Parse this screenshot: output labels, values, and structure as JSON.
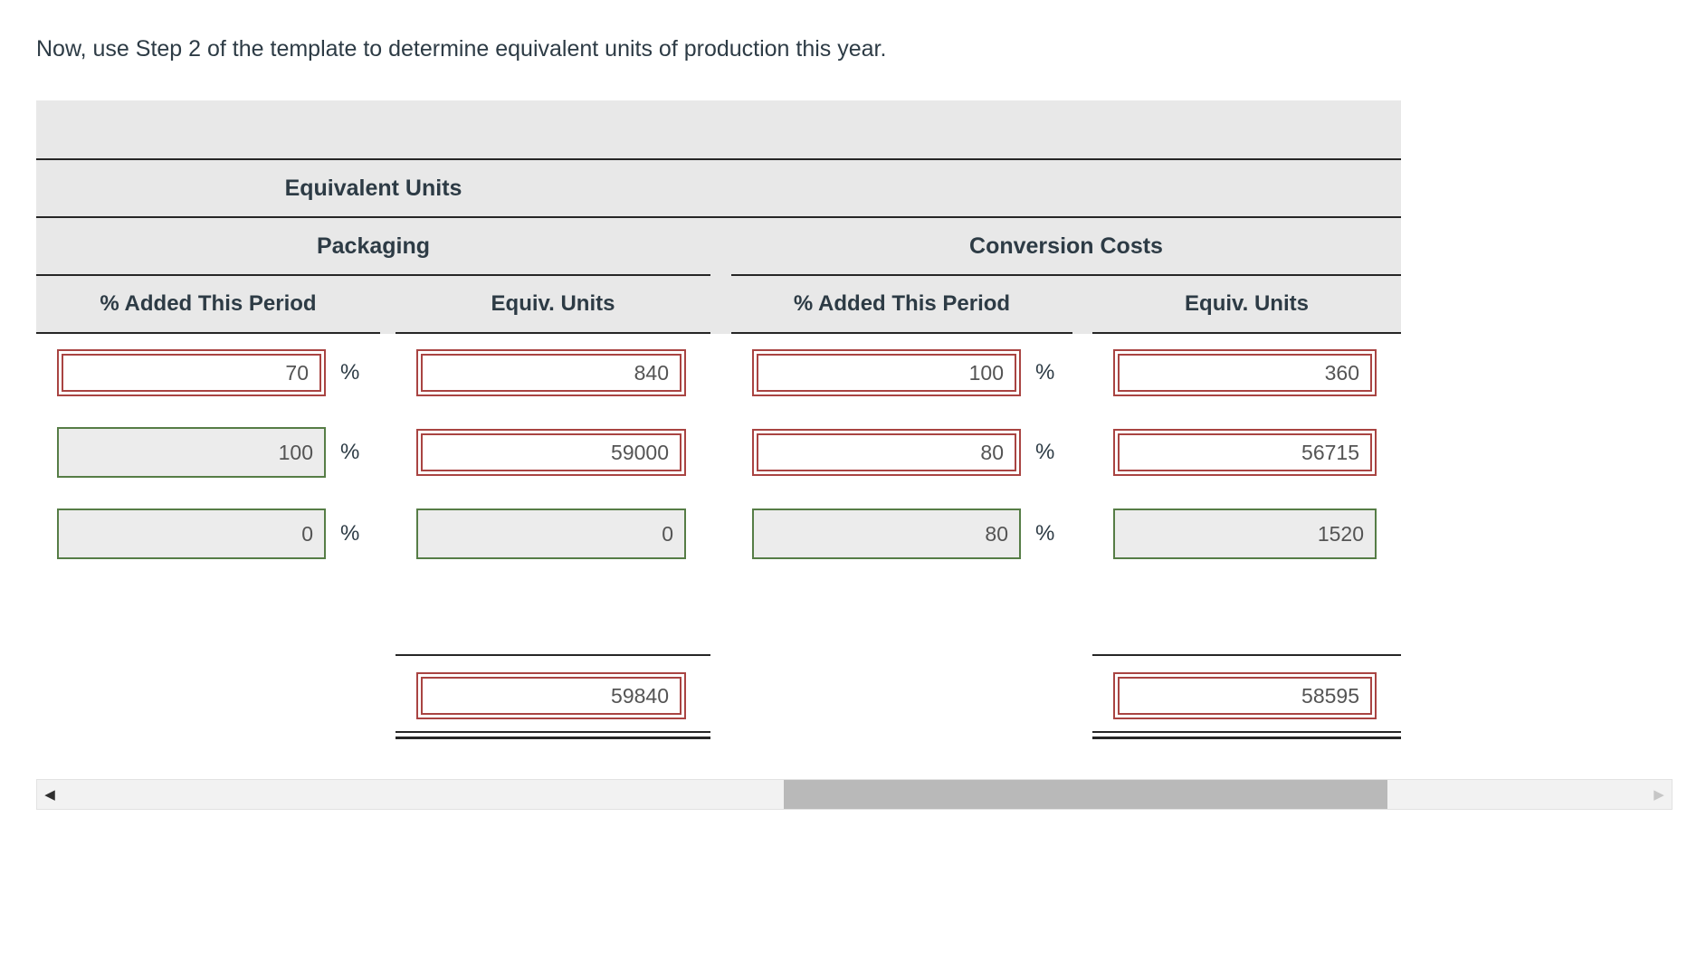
{
  "instruction": "Now, use Step 2 of the template to determine equivalent units of production this year.",
  "table": {
    "title": "Equivalent Units",
    "groups": {
      "packaging": "Packaging",
      "conversion": "Conversion Costs"
    },
    "columns": {
      "pct": "% Added This Period",
      "units": "Equiv. Units"
    },
    "percent": "%",
    "rows": [
      {
        "pkg_pct": {
          "value": "70",
          "readonly": false
        },
        "pkg_units": {
          "value": "840",
          "readonly": false
        },
        "conv_pct": {
          "value": "100",
          "readonly": false
        },
        "conv_units": {
          "value": "360",
          "readonly": false
        }
      },
      {
        "pkg_pct": {
          "value": "100",
          "readonly": true
        },
        "pkg_units": {
          "value": "59000",
          "readonly": false
        },
        "conv_pct": {
          "value": "80",
          "readonly": false
        },
        "conv_units": {
          "value": "56715",
          "readonly": false
        }
      },
      {
        "pkg_pct": {
          "value": "0",
          "readonly": true
        },
        "pkg_units": {
          "value": "0",
          "readonly": true
        },
        "conv_pct": {
          "value": "80",
          "readonly": true
        },
        "conv_units": {
          "value": "1520",
          "readonly": true
        }
      }
    ],
    "totals": {
      "pkg_units": "59840",
      "conv_units": "58595"
    }
  },
  "scrollbar": {
    "left_arrow": "◀",
    "right_arrow": "▶"
  },
  "colors": {
    "input_active_border": "#a94442",
    "input_readonly_border": "#567d46",
    "input_readonly_bg": "#ececec",
    "header_bg": "#e8e8e8",
    "rule_line": "#262626",
    "text": "#2d3b45",
    "value_text": "#545454",
    "scrollbar_thumb": "#b9b9b9",
    "scrollbar_track": "#f2f2f2"
  }
}
